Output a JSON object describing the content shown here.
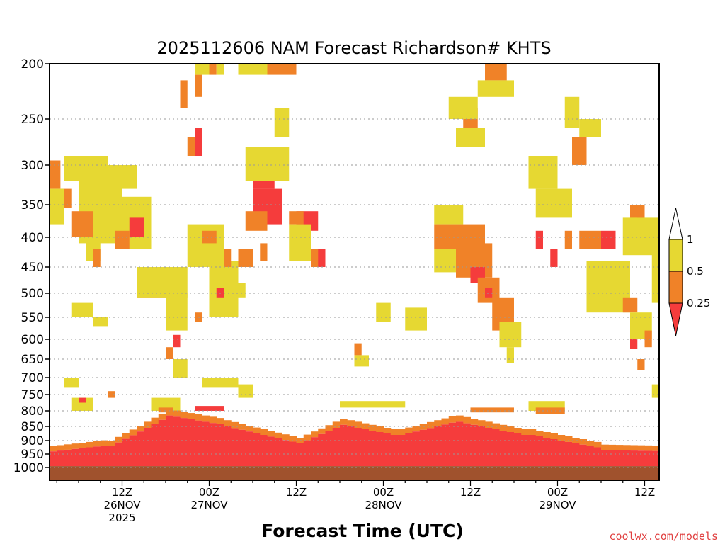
{
  "chart_data": {
    "type": "heatmap",
    "title": "2025112606 NAM Forecast Richardson# KHTS",
    "xlabel": "Forecast Time (UTC)",
    "ylabel": "Pressure (hPa)",
    "credit": "coolwx.com/models",
    "x_range_hours": [
      -4,
      80
    ],
    "y_ticks": [
      "200",
      "250",
      "300",
      "350",
      "400",
      "450",
      "500",
      "550",
      "600",
      "650",
      "700",
      "750",
      "800",
      "850",
      "900",
      "950",
      "1000"
    ],
    "y_levels": [
      200,
      250,
      300,
      350,
      400,
      450,
      500,
      550,
      600,
      650,
      700,
      750,
      800,
      850,
      900,
      950,
      1000
    ],
    "x_ticks": [
      {
        "hour": 6,
        "line1": "12Z",
        "line2": "26NOV",
        "line3": "2025"
      },
      {
        "hour": 18,
        "line1": "00Z",
        "line2": "27NOV",
        "line3": ""
      },
      {
        "hour": 30,
        "line1": "12Z",
        "line2": "",
        "line3": ""
      },
      {
        "hour": 42,
        "line1": "00Z",
        "line2": "28NOV",
        "line3": ""
      },
      {
        "hour": 54,
        "line1": "12Z",
        "line2": "",
        "line3": ""
      },
      {
        "hour": 66,
        "line1": "00Z",
        "line2": "29NOV",
        "line3": ""
      },
      {
        "hour": 78,
        "line1": "12Z",
        "line2": "",
        "line3": ""
      }
    ],
    "colorbar": {
      "labels": [
        "1",
        "0.5",
        "0.25"
      ],
      "bins": [
        {
          "label": "> 1",
          "color": "#ffffff"
        },
        {
          "label": "0.5 - 1",
          "color": "#e6d832"
        },
        {
          "label": "0.25 - 0.5",
          "color": "#f08228"
        },
        {
          "label": "< 0.25",
          "color": "#f53c3c"
        }
      ]
    },
    "colors": {
      "yellow": "#e6d832",
      "orange": "#f08228",
      "red": "#f53c3c",
      "ground": "#a0522d"
    },
    "surface_pressure": 995,
    "cells": [
      {
        "t0": -4,
        "t1": -2.5,
        "p0": 295,
        "p1": 330,
        "c": "orange"
      },
      {
        "t0": -2.5,
        "t1": -1,
        "p0": 330,
        "p1": 355,
        "c": "orange"
      },
      {
        "t0": -4,
        "t1": -2,
        "p0": 330,
        "p1": 380,
        "c": "yellow"
      },
      {
        "t0": -2,
        "t1": 4,
        "p0": 290,
        "p1": 320,
        "c": "yellow"
      },
      {
        "t0": 2,
        "t1": 4,
        "p0": 320,
        "p1": 380,
        "c": "orange"
      },
      {
        "t0": 0,
        "t1": 6,
        "p0": 320,
        "p1": 410,
        "c": "yellow"
      },
      {
        "t0": -1,
        "t1": 2,
        "p0": 360,
        "p1": 400,
        "c": "orange"
      },
      {
        "t0": 4,
        "t1": 8,
        "p0": 300,
        "p1": 330,
        "c": "yellow"
      },
      {
        "t0": 6,
        "t1": 10,
        "p0": 340,
        "p1": 420,
        "c": "yellow"
      },
      {
        "t0": 7,
        "t1": 9,
        "p0": 370,
        "p1": 400,
        "c": "red"
      },
      {
        "t0": 5,
        "t1": 7,
        "p0": 390,
        "p1": 420,
        "c": "orange"
      },
      {
        "t0": 1,
        "t1": 3,
        "p0": 400,
        "p1": 440,
        "c": "yellow"
      },
      {
        "t0": 2,
        "t1": 3,
        "p0": 420,
        "p1": 450,
        "c": "orange"
      },
      {
        "t0": -1,
        "t1": 2,
        "p0": 520,
        "p1": 550,
        "c": "yellow"
      },
      {
        "t0": 2,
        "t1": 4,
        "p0": 550,
        "p1": 570,
        "c": "yellow"
      },
      {
        "t0": 8,
        "t1": 12,
        "p0": 470,
        "p1": 510,
        "c": "orange"
      },
      {
        "t0": 8,
        "t1": 15,
        "p0": 450,
        "p1": 510,
        "c": "yellow"
      },
      {
        "t0": 12,
        "t1": 15,
        "p0": 500,
        "p1": 580,
        "c": "yellow"
      },
      {
        "t0": 13,
        "t1": 14,
        "p0": 590,
        "p1": 620,
        "c": "red"
      },
      {
        "t0": 12,
        "t1": 13,
        "p0": 620,
        "p1": 650,
        "c": "orange"
      },
      {
        "t0": 13,
        "t1": 15,
        "p0": 650,
        "p1": 700,
        "c": "yellow"
      },
      {
        "t0": 15,
        "t1": 17,
        "p0": 270,
        "p1": 290,
        "c": "orange"
      },
      {
        "t0": 16,
        "t1": 17,
        "p0": 260,
        "p1": 290,
        "c": "red"
      },
      {
        "t0": 14,
        "t1": 15,
        "p0": 215,
        "p1": 240,
        "c": "orange"
      },
      {
        "t0": 16,
        "t1": 17,
        "p0": 210,
        "p1": 230,
        "c": "orange"
      },
      {
        "t0": 16,
        "t1": 18,
        "p0": 200,
        "p1": 210,
        "c": "yellow"
      },
      {
        "t0": 18,
        "t1": 19,
        "p0": 200,
        "p1": 210,
        "c": "orange"
      },
      {
        "t0": 19,
        "t1": 20,
        "p0": 200,
        "p1": 210,
        "c": "yellow"
      },
      {
        "t0": 15,
        "t1": 20,
        "p0": 380,
        "p1": 450,
        "c": "yellow"
      },
      {
        "t0": 17,
        "t1": 19,
        "p0": 390,
        "p1": 410,
        "c": "orange"
      },
      {
        "t0": 18,
        "t1": 22,
        "p0": 440,
        "p1": 550,
        "c": "yellow"
      },
      {
        "t0": 19,
        "t1": 20,
        "p0": 490,
        "p1": 510,
        "c": "red"
      },
      {
        "t0": 20,
        "t1": 21,
        "p0": 420,
        "p1": 450,
        "c": "orange"
      },
      {
        "t0": 16,
        "t1": 17,
        "p0": 540,
        "p1": 560,
        "c": "orange"
      },
      {
        "t0": 22,
        "t1": 24,
        "p0": 420,
        "p1": 450,
        "c": "orange"
      },
      {
        "t0": 21,
        "t1": 23,
        "p0": 480,
        "p1": 510,
        "c": "yellow"
      },
      {
        "t0": 17,
        "t1": 22,
        "p0": 700,
        "p1": 730,
        "c": "yellow"
      },
      {
        "t0": 22,
        "t1": 24,
        "p0": 720,
        "p1": 760,
        "c": "yellow"
      },
      {
        "t0": 24,
        "t1": 27,
        "p0": 300,
        "p1": 330,
        "c": "red"
      },
      {
        "t0": 24,
        "t1": 28,
        "p0": 330,
        "p1": 380,
        "c": "red"
      },
      {
        "t0": 23,
        "t1": 26,
        "p0": 360,
        "p1": 390,
        "c": "orange"
      },
      {
        "t0": 23,
        "t1": 28,
        "p0": 280,
        "p1": 320,
        "c": "yellow"
      },
      {
        "t0": 22,
        "t1": 26,
        "p0": 200,
        "p1": 210,
        "c": "yellow"
      },
      {
        "t0": 26,
        "t1": 30,
        "p0": 200,
        "p1": 210,
        "c": "orange"
      },
      {
        "t0": 27,
        "t1": 29,
        "p0": 240,
        "p1": 270,
        "c": "yellow"
      },
      {
        "t0": 28,
        "t1": 29,
        "p0": 280,
        "p1": 320,
        "c": "yellow"
      },
      {
        "t0": 25,
        "t1": 26,
        "p0": 410,
        "p1": 440,
        "c": "orange"
      },
      {
        "t0": 30,
        "t1": 33,
        "p0": 360,
        "p1": 390,
        "c": "red"
      },
      {
        "t0": 29,
        "t1": 31,
        "p0": 360,
        "p1": 380,
        "c": "orange"
      },
      {
        "t0": 29,
        "t1": 32,
        "p0": 380,
        "p1": 440,
        "c": "yellow"
      },
      {
        "t0": 32,
        "t1": 34,
        "p0": 420,
        "p1": 450,
        "c": "orange"
      },
      {
        "t0": 33,
        "t1": 34,
        "p0": 420,
        "p1": 450,
        "c": "red"
      },
      {
        "t0": 41,
        "t1": 43,
        "p0": 520,
        "p1": 560,
        "c": "yellow"
      },
      {
        "t0": 38,
        "t1": 39,
        "p0": 610,
        "p1": 640,
        "c": "orange"
      },
      {
        "t0": 38,
        "t1": 40,
        "p0": 640,
        "p1": 670,
        "c": "yellow"
      },
      {
        "t0": 45,
        "t1": 48,
        "p0": 530,
        "p1": 580,
        "c": "yellow"
      },
      {
        "t0": 36,
        "t1": 45,
        "p0": 770,
        "p1": 790,
        "c": "yellow"
      },
      {
        "t0": 49,
        "t1": 53,
        "p0": 350,
        "p1": 380,
        "c": "yellow"
      },
      {
        "t0": 49,
        "t1": 56,
        "p0": 380,
        "p1": 420,
        "c": "orange"
      },
      {
        "t0": 49,
        "t1": 52,
        "p0": 420,
        "p1": 460,
        "c": "yellow"
      },
      {
        "t0": 52,
        "t1": 57,
        "p0": 410,
        "p1": 470,
        "c": "orange"
      },
      {
        "t0": 54,
        "t1": 56,
        "p0": 450,
        "p1": 480,
        "c": "red"
      },
      {
        "t0": 55,
        "t1": 58,
        "p0": 470,
        "p1": 520,
        "c": "orange"
      },
      {
        "t0": 56,
        "t1": 57,
        "p0": 490,
        "p1": 510,
        "c": "red"
      },
      {
        "t0": 57,
        "t1": 60,
        "p0": 510,
        "p1": 580,
        "c": "orange"
      },
      {
        "t0": 58,
        "t1": 61,
        "p0": 560,
        "p1": 620,
        "c": "yellow"
      },
      {
        "t0": 59,
        "t1": 60,
        "p0": 620,
        "p1": 660,
        "c": "yellow"
      },
      {
        "t0": 53,
        "t1": 55,
        "p0": 240,
        "p1": 260,
        "c": "orange"
      },
      {
        "t0": 52,
        "t1": 56,
        "p0": 260,
        "p1": 280,
        "c": "yellow"
      },
      {
        "t0": 56,
        "t1": 59,
        "p0": 200,
        "p1": 215,
        "c": "orange"
      },
      {
        "t0": 55,
        "t1": 60,
        "p0": 215,
        "p1": 230,
        "c": "yellow"
      },
      {
        "t0": 51,
        "t1": 55,
        "p0": 230,
        "p1": 250,
        "c": "yellow"
      },
      {
        "t0": 62,
        "t1": 63,
        "p0": 300,
        "p1": 320,
        "c": "orange"
      },
      {
        "t0": 62,
        "t1": 66,
        "p0": 290,
        "p1": 330,
        "c": "yellow"
      },
      {
        "t0": 63,
        "t1": 68,
        "p0": 330,
        "p1": 370,
        "c": "yellow"
      },
      {
        "t0": 63,
        "t1": 64,
        "p0": 390,
        "p1": 420,
        "c": "red"
      },
      {
        "t0": 65,
        "t1": 66,
        "p0": 420,
        "p1": 450,
        "c": "red"
      },
      {
        "t0": 67,
        "t1": 68,
        "p0": 390,
        "p1": 420,
        "c": "orange"
      },
      {
        "t0": 69,
        "t1": 72,
        "p0": 390,
        "p1": 420,
        "c": "orange"
      },
      {
        "t0": 72,
        "t1": 74,
        "p0": 390,
        "p1": 420,
        "c": "red"
      },
      {
        "t0": 68,
        "t1": 70,
        "p0": 270,
        "p1": 300,
        "c": "orange"
      },
      {
        "t0": 67,
        "t1": 69,
        "p0": 230,
        "p1": 260,
        "c": "yellow"
      },
      {
        "t0": 69,
        "t1": 72,
        "p0": 250,
        "p1": 270,
        "c": "yellow"
      },
      {
        "t0": 71,
        "t1": 75,
        "p0": 470,
        "p1": 520,
        "c": "orange"
      },
      {
        "t0": 70,
        "t1": 76,
        "p0": 440,
        "p1": 540,
        "c": "yellow"
      },
      {
        "t0": 75,
        "t1": 77,
        "p0": 510,
        "p1": 540,
        "c": "orange"
      },
      {
        "t0": 76,
        "t1": 79,
        "p0": 540,
        "p1": 600,
        "c": "yellow"
      },
      {
        "t0": 78,
        "t1": 79,
        "p0": 580,
        "p1": 620,
        "c": "orange"
      },
      {
        "t0": 76,
        "t1": 77,
        "p0": 600,
        "p1": 625,
        "c": "red"
      },
      {
        "t0": 77,
        "t1": 78,
        "p0": 650,
        "p1": 680,
        "c": "orange"
      },
      {
        "t0": 76,
        "t1": 78,
        "p0": 350,
        "p1": 380,
        "c": "orange"
      },
      {
        "t0": 77,
        "t1": 78,
        "p0": 370,
        "p1": 400,
        "c": "red"
      },
      {
        "t0": 75,
        "t1": 80,
        "p0": 370,
        "p1": 430,
        "c": "yellow"
      },
      {
        "t0": 80,
        "t1": 82,
        "p0": 440,
        "p1": 480,
        "c": "orange"
      },
      {
        "t0": 79,
        "t1": 82,
        "p0": 420,
        "p1": 520,
        "c": "yellow"
      },
      {
        "t0": 82,
        "t1": 84,
        "p0": 320,
        "p1": 360,
        "c": "orange"
      },
      {
        "t0": 83,
        "t1": 84,
        "p0": 330,
        "p1": 400,
        "c": "red"
      },
      {
        "t0": 83,
        "t1": 84,
        "p0": 250,
        "p1": 300,
        "c": "yellow"
      },
      {
        "t0": 82,
        "t1": 84,
        "p0": 270,
        "p1": 290,
        "c": "orange"
      },
      {
        "t0": 80,
        "t1": 82,
        "p0": 730,
        "p1": 760,
        "c": "red"
      },
      {
        "t0": 79,
        "t1": 84,
        "p0": 720,
        "p1": 760,
        "c": "yellow"
      },
      {
        "t0": 77,
        "t1": 80,
        "p0": 940,
        "p1": 960,
        "c": "yellow"
      },
      {
        "t0": -2,
        "t1": 0,
        "p0": 700,
        "p1": 730,
        "c": "yellow"
      },
      {
        "t0": -1,
        "t1": 2,
        "p0": 760,
        "p1": 800,
        "c": "yellow"
      },
      {
        "t0": 0,
        "t1": 1,
        "p0": 760,
        "p1": 775,
        "c": "red"
      },
      {
        "t0": 4,
        "t1": 5,
        "p0": 740,
        "p1": 760,
        "c": "orange"
      },
      {
        "t0": 10,
        "t1": 14,
        "p0": 760,
        "p1": 800,
        "c": "yellow"
      },
      {
        "t0": 11,
        "t1": 13,
        "p0": 790,
        "p1": 805,
        "c": "orange"
      },
      {
        "t0": 16,
        "t1": 20,
        "p0": 785,
        "p1": 800,
        "c": "red"
      },
      {
        "t0": 54,
        "t1": 60,
        "p0": 790,
        "p1": 805,
        "c": "orange"
      },
      {
        "t0": 62,
        "t1": 67,
        "p0": 770,
        "p1": 800,
        "c": "yellow"
      },
      {
        "t0": 63,
        "t1": 67,
        "p0": 790,
        "p1": 810,
        "c": "orange"
      }
    ]
  }
}
